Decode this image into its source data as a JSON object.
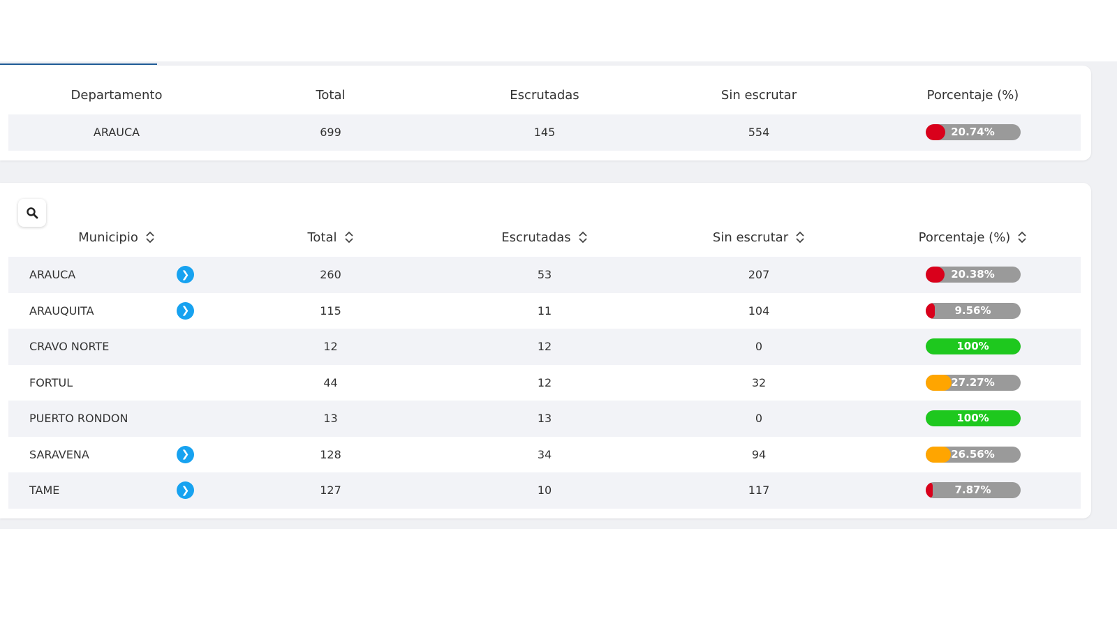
{
  "colors": {
    "low": "#d9001b",
    "mid": "#ffa500",
    "complete": "#1ec81e",
    "track": "#9a9a9a",
    "link": "#17a2f0",
    "tab_accent": "#1f5a96"
  },
  "summary": {
    "headers": [
      "Departamento",
      "Total",
      "Escrutadas",
      "Sin escrutar",
      "Porcentaje (%)"
    ],
    "row": {
      "name": "ARAUCA",
      "total": "699",
      "escrutadas": "145",
      "sin_escrutar": "554",
      "pct_label": "20.74%",
      "pct": 20.74,
      "color": "#d9001b"
    }
  },
  "municipios": {
    "search_icon": "search-icon",
    "headers": [
      "Municipio",
      "Total",
      "Escrutadas",
      "Sin escrutar",
      "Porcentaje (%)"
    ],
    "rows": [
      {
        "name": "ARAUCA",
        "total": "260",
        "escrutadas": "53",
        "sin_escrutar": "207",
        "pct_label": "20.38%",
        "pct": 20.38,
        "color": "#d9001b",
        "link": true
      },
      {
        "name": "ARAUQUITA",
        "total": "115",
        "escrutadas": "11",
        "sin_escrutar": "104",
        "pct_label": "9.56%",
        "pct": 9.56,
        "color": "#d9001b",
        "link": true
      },
      {
        "name": "CRAVO NORTE",
        "total": "12",
        "escrutadas": "12",
        "sin_escrutar": "0",
        "pct_label": "100%",
        "pct": 100,
        "color": "#1ec81e",
        "link": false
      },
      {
        "name": "FORTUL",
        "total": "44",
        "escrutadas": "12",
        "sin_escrutar": "32",
        "pct_label": "27.27%",
        "pct": 27.27,
        "color": "#ffa500",
        "link": false
      },
      {
        "name": "PUERTO RONDON",
        "total": "13",
        "escrutadas": "13",
        "sin_escrutar": "0",
        "pct_label": "100%",
        "pct": 100,
        "color": "#1ec81e",
        "link": false
      },
      {
        "name": "SARAVENA",
        "total": "128",
        "escrutadas": "34",
        "sin_escrutar": "94",
        "pct_label": "26.56%",
        "pct": 26.56,
        "color": "#ffa500",
        "link": true
      },
      {
        "name": "TAME",
        "total": "127",
        "escrutadas": "10",
        "sin_escrutar": "117",
        "pct_label": "7.87%",
        "pct": 7.87,
        "color": "#d9001b",
        "link": true
      }
    ]
  }
}
